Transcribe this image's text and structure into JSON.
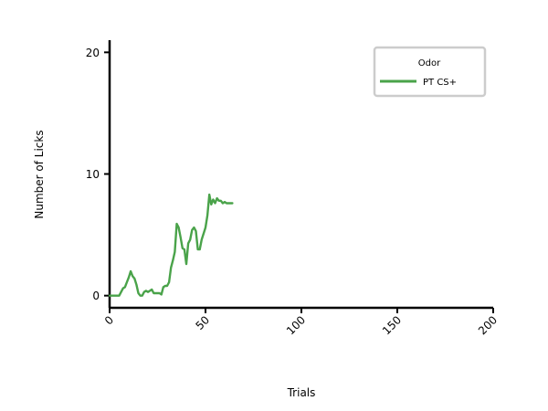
{
  "chart_data": {
    "type": "line",
    "xlabel": "Trials",
    "ylabel": "Number of Licks",
    "xlim": [
      0,
      200
    ],
    "ylim": [
      -1,
      21
    ],
    "xticks": [
      0,
      50,
      100,
      150,
      200
    ],
    "yticks": [
      0,
      10,
      20
    ],
    "legend": {
      "title": "Odor",
      "placement": "top-right"
    },
    "grid": false,
    "series": [
      {
        "name": "PT CS+",
        "color": "#4aa34a",
        "x": [
          0,
          3,
          5,
          6,
          7,
          8,
          9,
          10,
          11,
          12,
          13,
          14,
          15,
          16,
          17,
          18,
          19,
          20,
          21,
          22,
          23,
          24,
          25,
          26,
          27,
          28,
          29,
          30,
          31,
          32,
          33,
          34,
          35,
          36,
          37,
          38,
          39,
          40,
          41,
          42,
          43,
          44,
          45,
          46,
          47,
          48,
          49,
          50,
          51,
          52,
          53,
          54,
          55,
          56,
          57,
          58,
          59,
          60,
          61,
          62,
          63,
          64
        ],
        "values": [
          0,
          0,
          0,
          0.3,
          0.6,
          0.7,
          1.1,
          1.5,
          2.0,
          1.6,
          1.4,
          0.9,
          0.2,
          0.0,
          0.0,
          0.3,
          0.4,
          0.3,
          0.4,
          0.5,
          0.2,
          0.2,
          0.2,
          0.2,
          0.1,
          0.7,
          0.8,
          0.8,
          1.1,
          2.3,
          2.9,
          3.6,
          5.9,
          5.6,
          4.8,
          3.9,
          3.8,
          2.6,
          4.3,
          4.6,
          5.4,
          5.6,
          5.3,
          3.8,
          3.8,
          4.6,
          5.1,
          5.6,
          6.6,
          8.3,
          7.5,
          7.9,
          7.6,
          8.0,
          7.8,
          7.8,
          7.6,
          7.7,
          7.6,
          7.6,
          7.6,
          7.6
        ]
      }
    ]
  }
}
